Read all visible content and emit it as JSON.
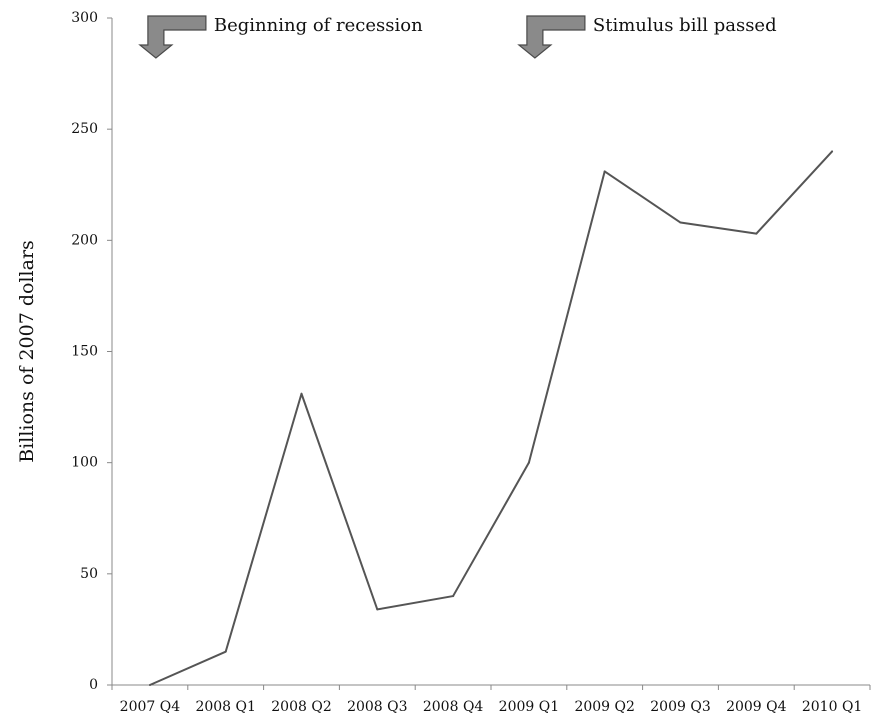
{
  "chart_data": {
    "type": "line",
    "title": "",
    "xlabel": "",
    "ylabel": "Billions of 2007 dollars",
    "categories": [
      "2007 Q4",
      "2008 Q1",
      "2008 Q2",
      "2008 Q3",
      "2008 Q4",
      "2009 Q1",
      "2009 Q2",
      "2009 Q3",
      "2009 Q4",
      "2010 Q1"
    ],
    "values": [
      0,
      15,
      131,
      34,
      40,
      100,
      231,
      208,
      203,
      240
    ],
    "ylim": [
      0,
      300
    ],
    "yticks": [
      "0",
      "50",
      "100",
      "150",
      "200",
      "250",
      "300"
    ],
    "grid": false,
    "legend": "none",
    "line_color": "#555555",
    "annotations": [
      {
        "text": "Beginning of recession",
        "category": "2007 Q4",
        "arrow": "down-arrow-icon"
      },
      {
        "text": "Stimulus bill passed",
        "category": "2009 Q1",
        "arrow": "down-arrow-icon"
      }
    ]
  }
}
